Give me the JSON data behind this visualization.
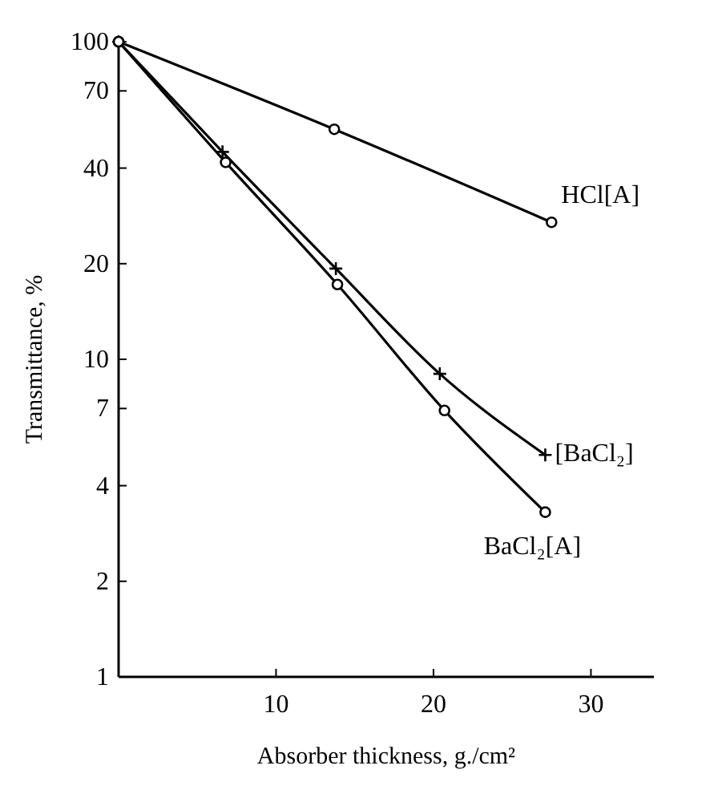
{
  "chart_data": {
    "type": "line",
    "xlabel": "Absorber thickness, g./cm²",
    "ylabel": "Transmittance, %",
    "log": "y",
    "xlim": [
      0,
      34
    ],
    "xticks": [
      10,
      20,
      30
    ],
    "ylim": [
      1,
      100
    ],
    "yticks": [
      1,
      2,
      4,
      7,
      10,
      20,
      40,
      70,
      100
    ],
    "grid": false,
    "line_style": "solid",
    "series": [
      {
        "name": "HCl[A]",
        "color": "#000000",
        "marker": "circle",
        "x": [
          0,
          13.7,
          27.5
        ],
        "values": [
          100,
          53,
          27
        ]
      },
      {
        "name": "[BaCl₂]",
        "color": "#000000",
        "marker": "cross",
        "x": [
          0,
          6.6,
          13.8,
          20.4,
          27.1
        ],
        "values": [
          100,
          45,
          19.3,
          9,
          5
        ]
      },
      {
        "name": "BaCl₂[A]",
        "color": "#000000",
        "marker": "circle",
        "x": [
          0,
          6.8,
          13.9,
          20.7,
          27.1
        ],
        "values": [
          100,
          41.7,
          17.2,
          6.9,
          3.3
        ]
      }
    ]
  }
}
